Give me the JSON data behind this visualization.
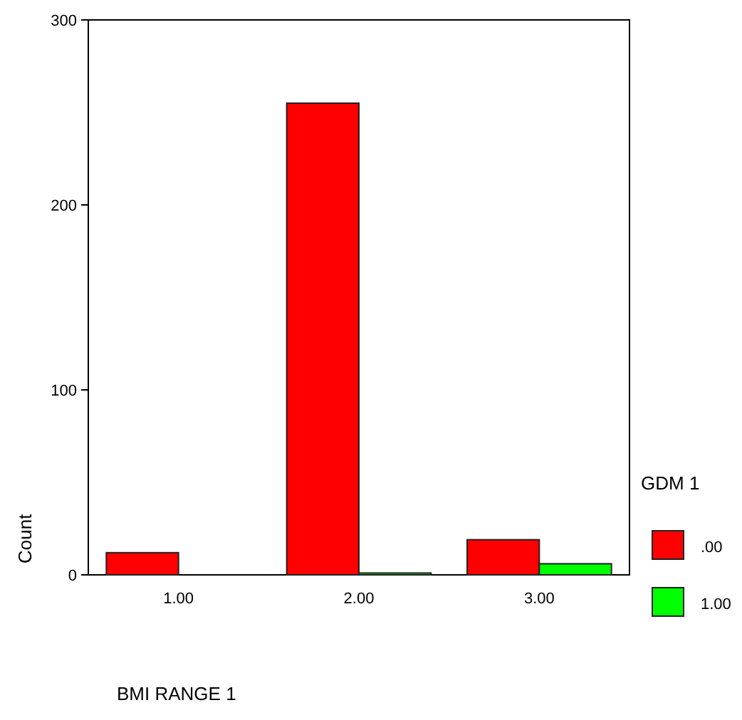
{
  "chart_data": {
    "type": "bar",
    "categories": [
      "1.00",
      "2.00",
      "3.00"
    ],
    "xlabel": "BMI RANGE 1",
    "ylabel": "Count",
    "legend_title": "GDM 1",
    "legend": "right",
    "series": [
      {
        "name": ".00",
        "color": "#ff0000",
        "values": [
          12,
          255,
          19
        ]
      },
      {
        "name": "1.00",
        "color": "#00ff00",
        "values": [
          0,
          1,
          6
        ]
      }
    ],
    "ylim": [
      0,
      300
    ],
    "yticks": [
      {
        "value": 0,
        "label": "0"
      },
      100,
      200,
      300
    ]
  }
}
